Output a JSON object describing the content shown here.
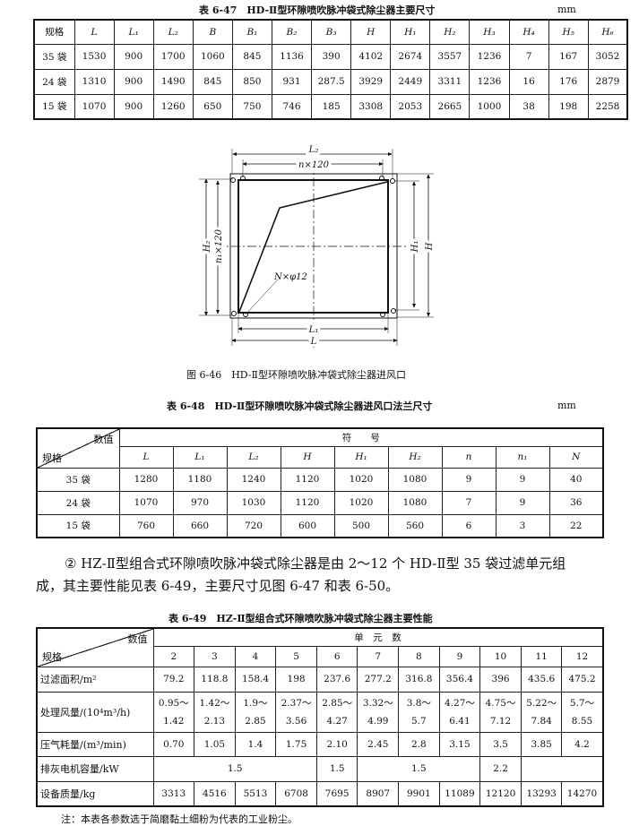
{
  "table_6_47": {
    "title": "表 6-47　HD-Ⅱ型环隙喷吹脉冲袋式除尘器主要尺寸",
    "unit": "mm",
    "headers": [
      "规格",
      "L",
      "L₁",
      "L₂",
      "B",
      "B₁",
      "B₂",
      "B₃",
      "H",
      "H₁",
      "H₂",
      "H₃",
      "H₄",
      "H₅",
      "H₆"
    ],
    "rows": [
      [
        "35 袋",
        "1530",
        "900",
        "1700",
        "1060",
        "845",
        "1136",
        "390",
        "4102",
        "2674",
        "3557",
        "1236",
        "7",
        "167",
        "3052"
      ],
      [
        "24 袋",
        "1310",
        "900",
        "1490",
        "845",
        "850",
        "931",
        "287.5",
        "3929",
        "2449",
        "3311",
        "1236",
        "16",
        "176",
        "2879"
      ],
      [
        "15 袋",
        "1070",
        "900",
        "1260",
        "650",
        "750",
        "746",
        "185",
        "3308",
        "2053",
        "2665",
        "1000",
        "38",
        "198",
        "2258"
      ]
    ]
  },
  "figure_6_46": {
    "caption": "图 6-46　HD-Ⅱ型环隙喷吹脉冲袋式除尘器进风口",
    "labels": {
      "L2": "L₂",
      "n120": "n×120",
      "L1": "L₁",
      "L": "L",
      "H2": "H₂",
      "n1_120": "n₁×120",
      "H1": "H₁",
      "H": "H",
      "bolts": "N×φ12"
    }
  },
  "table_6_48": {
    "title": "表 6-48　HD-Ⅱ型环隙喷吹脉冲袋式除尘器进风口法兰尺寸",
    "unit": "mm",
    "corner_top": "数值",
    "corner_bottom": "规格",
    "group_header": "符　　号",
    "headers": [
      "L",
      "L₁",
      "L₂",
      "H",
      "H₁",
      "H₂",
      "n",
      "n₁",
      "N"
    ],
    "rows": [
      [
        "35 袋",
        "1280",
        "1180",
        "1240",
        "1120",
        "1020",
        "1080",
        "9",
        "9",
        "40"
      ],
      [
        "24 袋",
        "1070",
        "970",
        "1030",
        "1120",
        "1020",
        "1080",
        "7",
        "9",
        "36"
      ],
      [
        "15 袋",
        "760",
        "660",
        "720",
        "600",
        "500",
        "560",
        "6",
        "3",
        "22"
      ]
    ]
  },
  "paragraph": {
    "line1": "② HZ-Ⅱ型组合式环隙喷吹脉冲袋式除尘器是由 2～12 个 HD-Ⅱ型 35 袋过滤单元组",
    "line2": "成，其主要性能见表 6-49，主要尺寸见图 6-47 和表 6-50。"
  },
  "table_6_49": {
    "title": "表 6-49　HZ-Ⅱ型组合式环隙喷吹脉冲袋式除尘器主要性能",
    "corner_top": "数值",
    "corner_bottom": "规格",
    "group_header": "单　元　数",
    "headers": [
      "2",
      "3",
      "4",
      "5",
      "6",
      "7",
      "8",
      "9",
      "10",
      "11",
      "12"
    ],
    "filter_area": {
      "label": "过滤面积/m²",
      "values": [
        "79.2",
        "118.8",
        "158.4",
        "198",
        "237.6",
        "277.2",
        "316.8",
        "356.4",
        "396",
        "435.6",
        "475.2"
      ]
    },
    "air_volume": {
      "label": "处理风量/(10⁴m³/h)",
      "low": [
        "0.95～",
        "1.42～",
        "1.9～",
        "2.37～",
        "2.85～",
        "3.32～",
        "3.8～",
        "4.27～",
        "4.75～",
        "5.22～",
        "5.7～"
      ],
      "high": [
        "1.42",
        "2.13",
        "2.85",
        "3.56",
        "4.27",
        "4.99",
        "5.7",
        "6.41",
        "7.12",
        "7.84",
        "8.55"
      ]
    },
    "air_consumption": {
      "label": "压气耗量/(m³/min)",
      "values": [
        "0.70",
        "1.05",
        "1.4",
        "1.75",
        "2.10",
        "2.45",
        "2.8",
        "3.15",
        "3.5",
        "3.85",
        "4.2"
      ]
    },
    "motor": {
      "label": "排灰电机容量/kW",
      "values": [
        "1.5",
        "1.5",
        "1.5",
        "2.2"
      ]
    },
    "mass": {
      "label": "设备质量/kg",
      "values": [
        "3313",
        "4516",
        "5513",
        "6708",
        "7695",
        "8907",
        "9901",
        "11089",
        "12120",
        "13293",
        "14270"
      ]
    },
    "note": "注：本表各参数选于简磨黏土细粉为代表的工业粉尘。"
  }
}
